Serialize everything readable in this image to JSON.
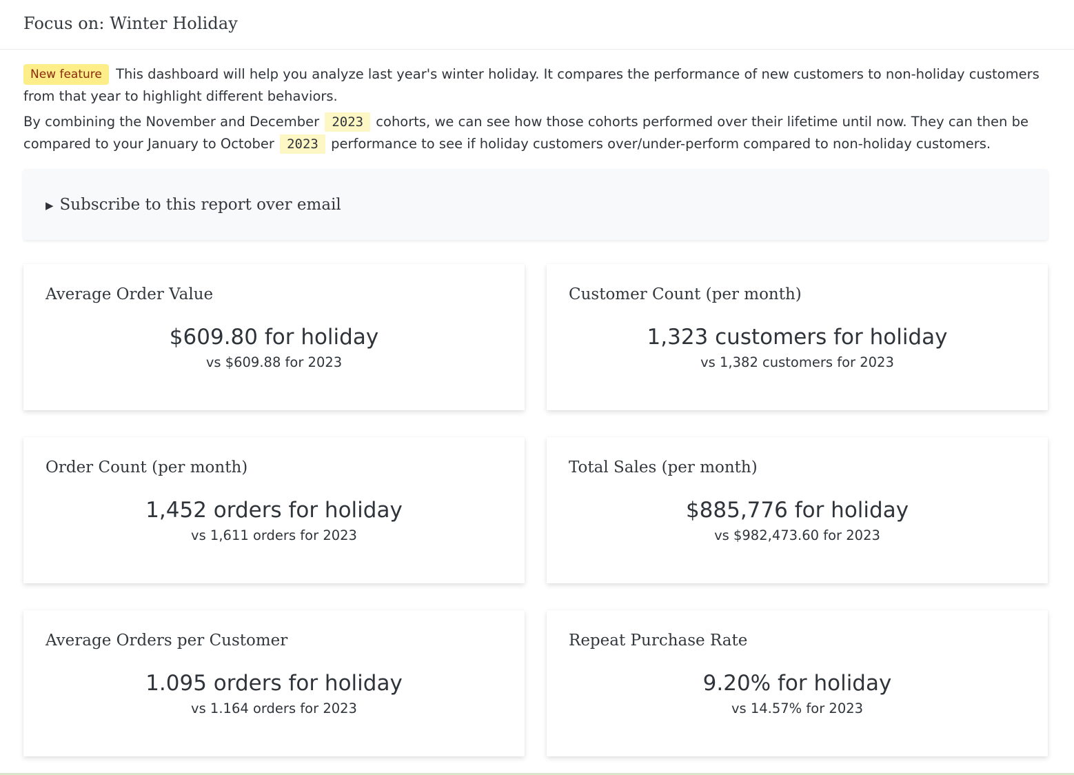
{
  "header": {
    "title": "Focus on: Winter Holiday"
  },
  "intro": {
    "badge": "New feature",
    "paragraph1": "This dashboard will help you analyze last year's winter holiday. It compares the performance of new customers to non-holiday customers from that year to highlight different behaviors.",
    "p2_part1": "By combining the November and December",
    "p2_year1": "2023",
    "p2_part2": "cohorts, we can see how those cohorts performed over their lifetime until now. They can then be compared to your January to October",
    "p2_year2": "2023",
    "p2_part3": "performance to see if holiday customers over/under-perform compared to non-holiday customers."
  },
  "subscribe": {
    "label": "Subscribe to this report over email"
  },
  "cards": [
    {
      "title": "Average Order Value",
      "primary": "$609.80 for holiday",
      "secondary": "vs $609.88 for 2023"
    },
    {
      "title": "Customer Count (per month)",
      "primary": "1,323 customers for holiday",
      "secondary": "vs 1,382 customers for 2023"
    },
    {
      "title": "Order Count (per month)",
      "primary": "1,452 orders for holiday",
      "secondary": "vs 1,611 orders for 2023"
    },
    {
      "title": "Total Sales (per month)",
      "primary": "$885,776 for holiday",
      "secondary": "vs $982,473.60 for 2023"
    },
    {
      "title": "Average Orders per Customer",
      "primary": "1.095 orders for holiday",
      "secondary": "vs 1.164 orders for 2023"
    },
    {
      "title": "Repeat Purchase Rate",
      "primary": "9.20% for holiday",
      "secondary": "vs 14.57% for 2023"
    }
  ]
}
